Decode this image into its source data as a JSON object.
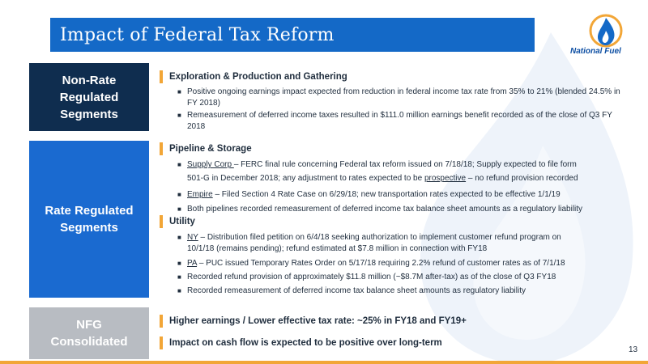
{
  "title": "Impact of Federal Tax Reform",
  "logo_text": "National Fuel",
  "page_number": "13",
  "boxes": {
    "non_rate": [
      "Non-Rate",
      "Regulated",
      "Segments"
    ],
    "rate": [
      "Rate Regulated",
      "Segments"
    ],
    "nfg": [
      "NFG",
      "Consolidated"
    ]
  },
  "sections": {
    "exploration": {
      "heading": "Exploration & Production and Gathering",
      "bullets": [
        "Positive ongoing earnings impact expected from reduction in federal income tax rate from 35% to 21% (blended 24.5% in FY 2018)",
        "Remeasurement of deferred income taxes resulted in $111.0 million earnings benefit recorded as of the close of Q3 FY 2018"
      ]
    },
    "pipeline": {
      "heading": "Pipeline & Storage",
      "b1_link": "Supply Corp ",
      "b1_text": "– FERC final rule concerning Federal tax reform issued on 7/18/18; Supply expected to file form",
      "b1_line2_a": "501-G in December 2018; any adjustment to rates expected to be ",
      "b1_link2": "prospective",
      "b1_line2_b": " – no refund provision recorded",
      "b2_link": "Empire",
      "b2_text": " – Filed Section 4 Rate Case on 6/29/18; new transportation rates expected to be effective 1/1/19",
      "b3": "Both pipelines recorded remeasurement of deferred income tax balance sheet amounts as a regulatory liability"
    },
    "utility": {
      "heading": "Utility",
      "b1_link": "NY",
      "b1_text": " – Distribution filed petition on 6/4/18 seeking authorization to implement customer refund program on",
      "b1_line2": "10/1/18 (remains pending); refund estimated at $7.8 million in connection with FY18",
      "b2_link": "PA",
      "b2_text": " – PUC issued Temporary Rates Order on 5/17/18 requiring 2.2% refund of customer rates as of 7/1/18",
      "b3": "Recorded refund provision of approximately $11.8 million (~$8.7M after-tax) as of the close of Q3 FY18",
      "b4": "Recorded remeasurement of deferred income tax balance sheet amounts as regulatory liability"
    },
    "consolidated": {
      "line1": "Higher earnings / Lower effective tax rate: ~25% in FY18 and FY19+",
      "line2": "Impact on cash flow is expected to be positive over long-term"
    }
  },
  "colors": {
    "title_bar": "#1469c7",
    "dark_navy": "#0f2d4f",
    "rate_blue": "#1a6ad0",
    "nfg_gray": "#b8bcc2",
    "accent_orange": "#f2a637"
  }
}
